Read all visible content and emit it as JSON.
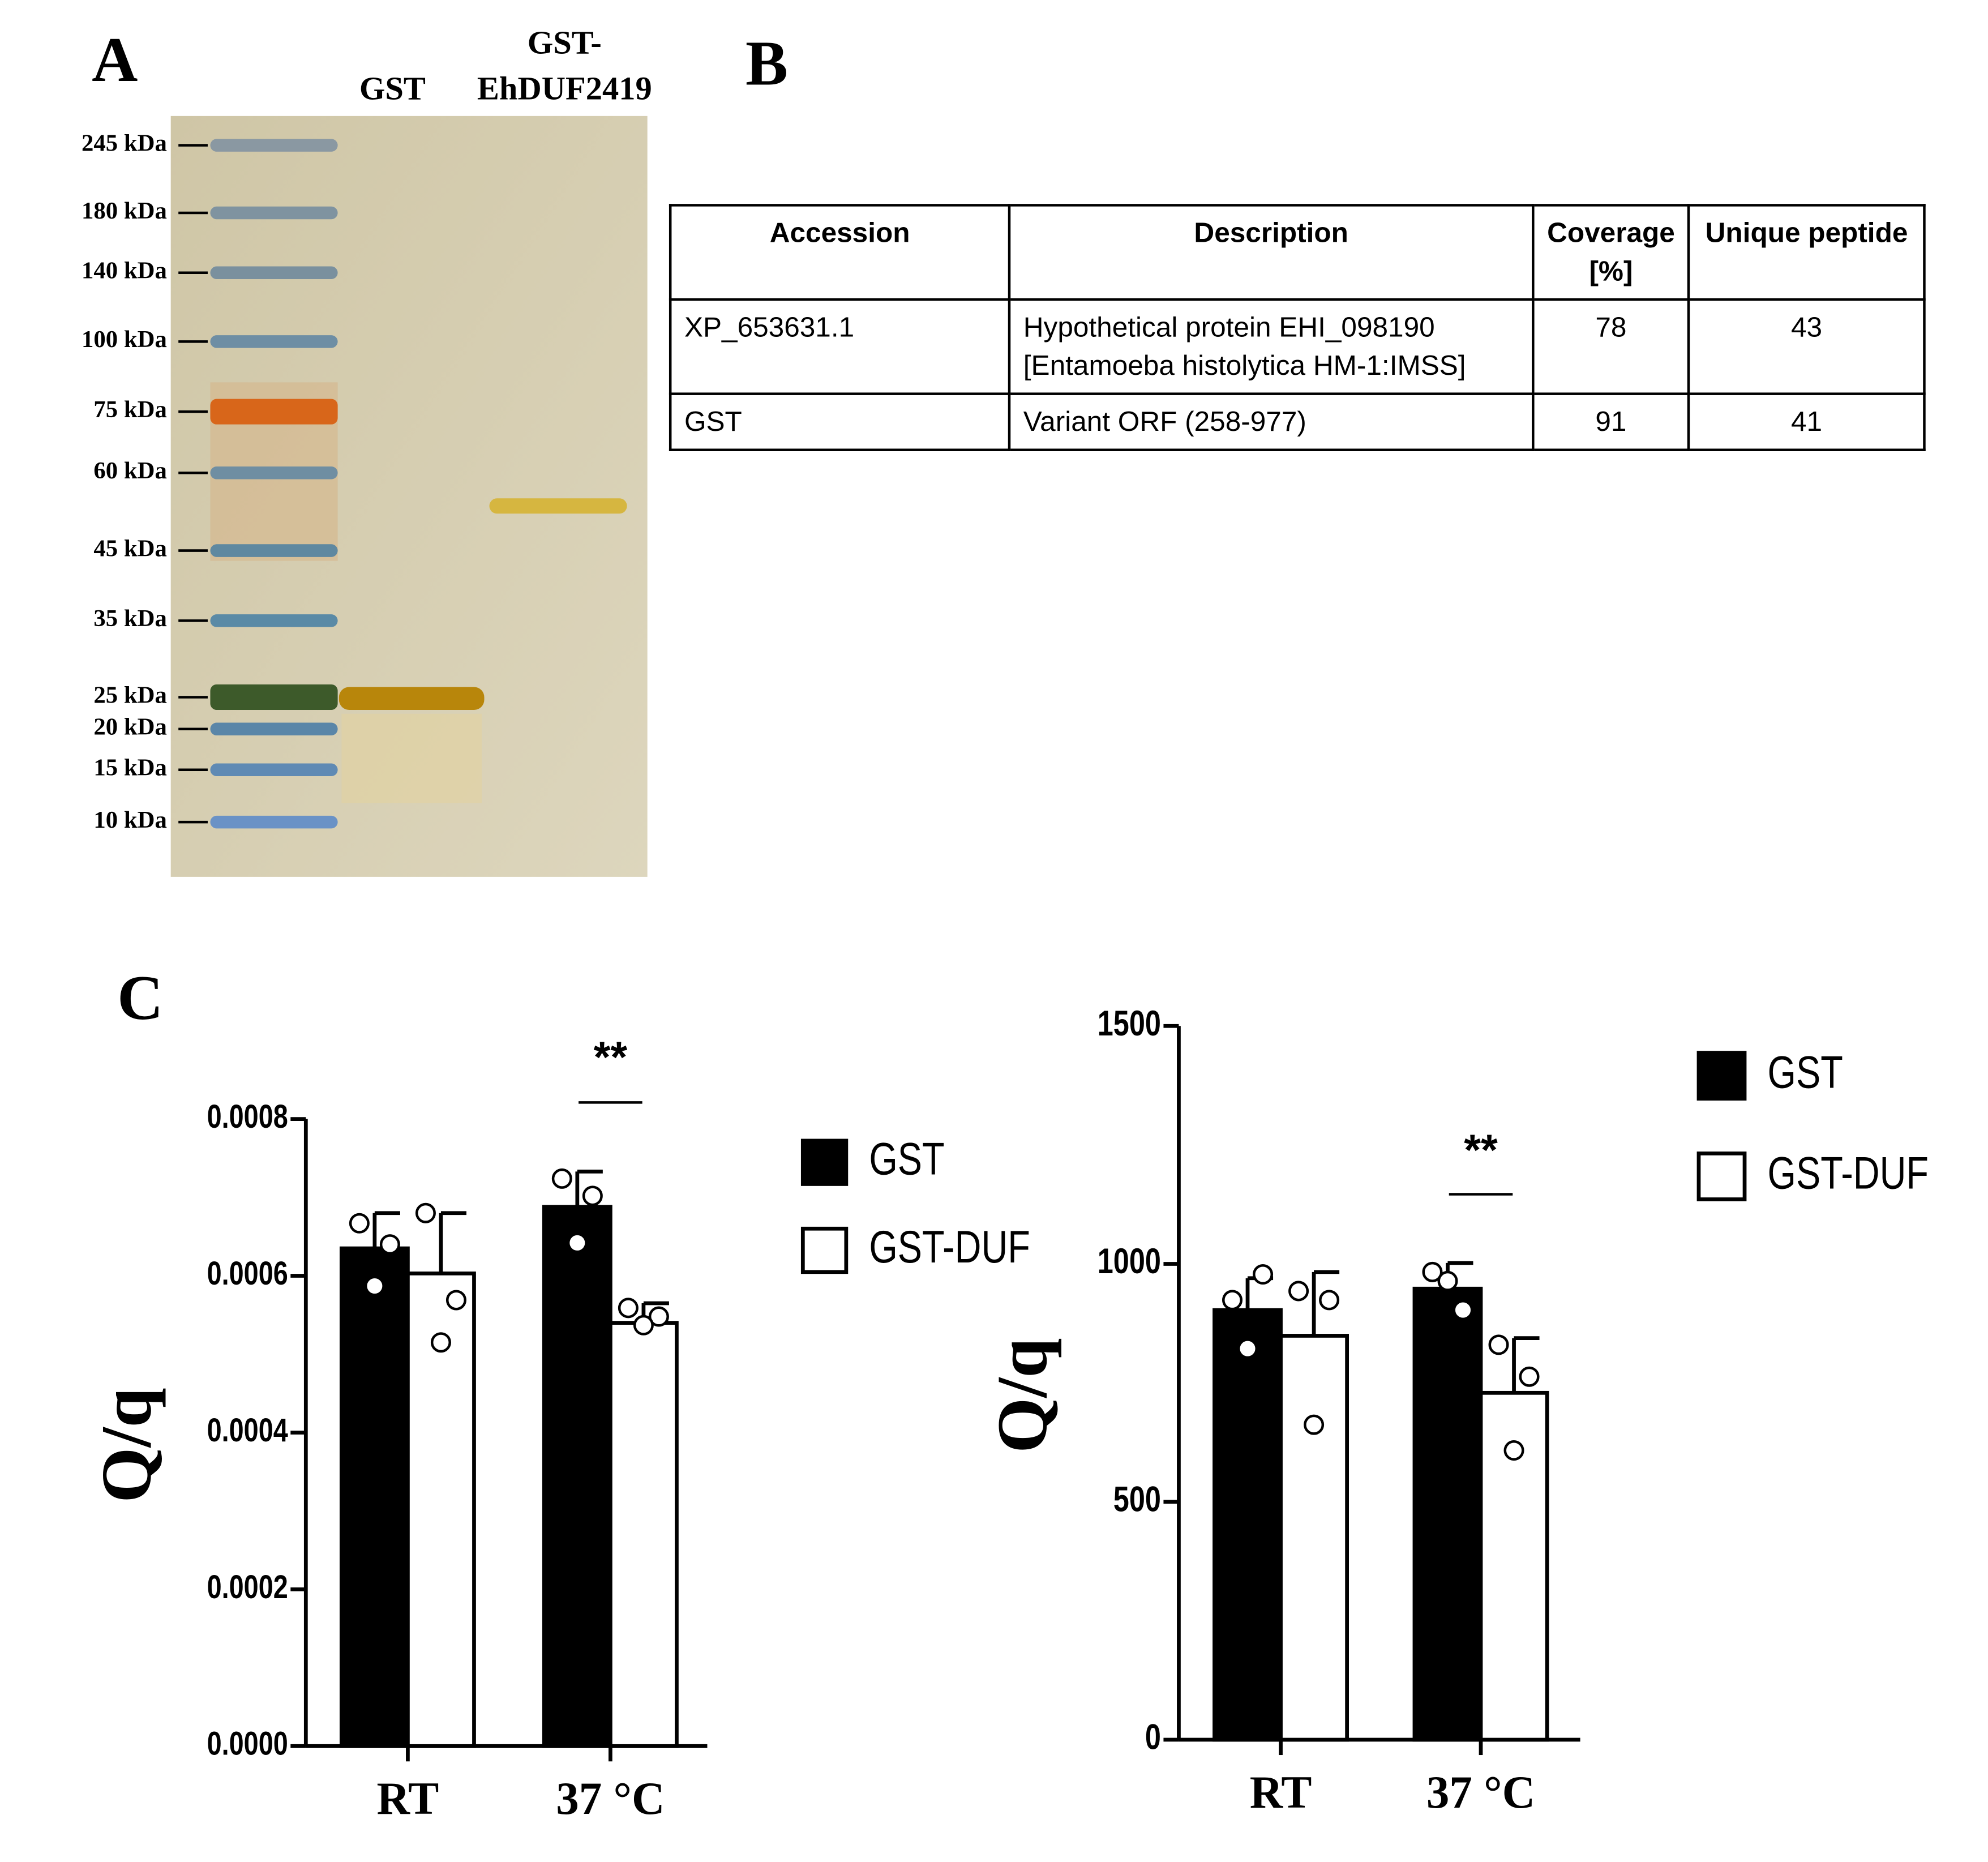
{
  "panels": [
    "A",
    "B",
    "C"
  ],
  "gel": {
    "lanes": [
      {
        "label_lines": [
          "GST"
        ]
      },
      {
        "label_lines": [
          "GST-",
          "EhDUF2419"
        ]
      }
    ],
    "markers": [
      "245 kDa",
      "180 kDa",
      "140 kDa",
      "100 kDa",
      "75 kDa",
      "60 kDa",
      "45 kDa",
      "35 kDa",
      "25 kDa",
      "20 kDa",
      "15 kDa",
      "10 kDa"
    ]
  },
  "table": {
    "header": [
      "Accession",
      "Description",
      "Coverage [%]",
      "Unique peptide"
    ],
    "rows": [
      [
        "XP_653631.1",
        "Hypothetical protein EHI_098190 [Entamoeba histolytica HM-1:IMSS]",
        78,
        43
      ],
      [
        "GST",
        "Variant ORF (258-977)",
        91,
        41
      ]
    ]
  },
  "chart_data": [
    {
      "type": "bar",
      "ylabel": "Q/q",
      "categories": [
        "RT",
        "37 °C"
      ],
      "series": [
        {
          "name": "GST",
          "color": "#000000",
          "values": [
            0.000635,
            0.000688
          ],
          "errors": [
            4.5e-05,
            4.5e-05
          ],
          "points": [
            [
              0.000667,
              0.00064,
              0.000587
            ],
            [
              0.000724,
              0.000702,
              0.000642
            ]
          ]
        },
        {
          "name": "GST-DUF",
          "color": "#ffffff",
          "values": [
            0.000603,
            0.00054
          ],
          "errors": [
            7.7e-05,
            2.5e-05
          ],
          "points": [
            [
              0.00068,
              0.000569,
              0.000515
            ],
            [
              0.000559,
              0.000548,
              0.000537
            ]
          ]
        }
      ],
      "ylim": [
        0,
        0.0008
      ],
      "yticks": [
        {
          "value": 0,
          "label": "0.0000"
        },
        {
          "value": 0.0002,
          "label": "0.0002"
        },
        {
          "value": 0.0004,
          "label": "0.0004"
        },
        {
          "value": 0.0006,
          "label": "0.0006"
        },
        {
          "value": 0.0008,
          "label": "0.0008"
        }
      ],
      "annotation": "**"
    },
    {
      "type": "bar",
      "ylabel": "Q/q",
      "categories": [
        "RT",
        "37 °C"
      ],
      "series": [
        {
          "name": "GST",
          "color": "#000000",
          "values": [
            903,
            948
          ],
          "errors": [
            67,
            54
          ],
          "points": [
            [
              924,
              978,
              822
            ],
            [
              983,
              903,
              964
            ]
          ]
        },
        {
          "name": "GST-DUF",
          "color": "#ffffff",
          "values": [
            849,
            729
          ],
          "errors": [
            134,
            115
          ],
          "points": [
            [
              943,
              924,
              662
            ],
            [
              830,
              763,
              608
            ]
          ]
        }
      ],
      "ylim": [
        0,
        1500
      ],
      "yticks": [
        0,
        500,
        1000,
        1500
      ],
      "annotation": "**"
    }
  ]
}
